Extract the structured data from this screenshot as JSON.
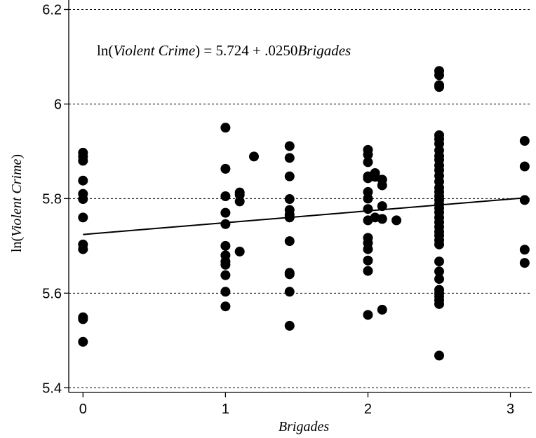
{
  "chart_data": {
    "type": "scatter",
    "title": "",
    "xlabel": "Brigades",
    "ylabel": {
      "pre": "ln(",
      "italic": "Violent Crime",
      "post": ")"
    },
    "annotation": {
      "lhs_pre": "ln(",
      "lhs_italic": "Violent Crime",
      "mid": ") = 5.724 + .0250",
      "rhs_italic": "Brigades"
    },
    "xlim": [
      -0.1,
      3.15
    ],
    "ylim": [
      5.39,
      6.22
    ],
    "xticks": [
      {
        "v": 0,
        "label": "0"
      },
      {
        "v": 1,
        "label": "1"
      },
      {
        "v": 2,
        "label": "2"
      },
      {
        "v": 3,
        "label": "3"
      }
    ],
    "yticks": [
      {
        "v": 5.4,
        "label": "5.4"
      },
      {
        "v": 5.6,
        "label": "5.6"
      },
      {
        "v": 5.8,
        "label": "5.8"
      },
      {
        "v": 6.0,
        "label": "6"
      },
      {
        "v": 6.2,
        "label": "6.2"
      }
    ],
    "grid": "horizontal-dashed",
    "fit_line": {
      "intercept": 5.724,
      "slope": 0.025,
      "x_range": [
        0,
        3.1
      ]
    },
    "points": [
      {
        "x": 0,
        "y": 5.897
      },
      {
        "x": 0,
        "y": 5.889
      },
      {
        "x": 0,
        "y": 5.88
      },
      {
        "x": 0,
        "y": 5.838
      },
      {
        "x": 0,
        "y": 5.81
      },
      {
        "x": 0,
        "y": 5.799
      },
      {
        "x": 0,
        "y": 5.76
      },
      {
        "x": 0,
        "y": 5.703
      },
      {
        "x": 0,
        "y": 5.693
      },
      {
        "x": 0,
        "y": 5.549
      },
      {
        "x": 0,
        "y": 5.545
      },
      {
        "x": 0,
        "y": 5.497
      },
      {
        "x": 1,
        "y": 5.95
      },
      {
        "x": 1,
        "y": 5.863
      },
      {
        "x": 1,
        "y": 5.805
      },
      {
        "x": 1,
        "y": 5.77
      },
      {
        "x": 1,
        "y": 5.746
      },
      {
        "x": 1,
        "y": 5.7
      },
      {
        "x": 1,
        "y": 5.68
      },
      {
        "x": 1,
        "y": 5.667
      },
      {
        "x": 1,
        "y": 5.66
      },
      {
        "x": 1,
        "y": 5.638
      },
      {
        "x": 1,
        "y": 5.603
      },
      {
        "x": 1,
        "y": 5.572
      },
      {
        "x": 1.1,
        "y": 5.813
      },
      {
        "x": 1.1,
        "y": 5.808
      },
      {
        "x": 1.1,
        "y": 5.794
      },
      {
        "x": 1.1,
        "y": 5.688
      },
      {
        "x": 1.2,
        "y": 5.889
      },
      {
        "x": 1.45,
        "y": 5.911
      },
      {
        "x": 1.45,
        "y": 5.886
      },
      {
        "x": 1.45,
        "y": 5.847
      },
      {
        "x": 1.45,
        "y": 5.799
      },
      {
        "x": 1.45,
        "y": 5.776
      },
      {
        "x": 1.45,
        "y": 5.766
      },
      {
        "x": 1.45,
        "y": 5.76
      },
      {
        "x": 1.45,
        "y": 5.71
      },
      {
        "x": 1.45,
        "y": 5.643
      },
      {
        "x": 1.45,
        "y": 5.64
      },
      {
        "x": 1.45,
        "y": 5.603
      },
      {
        "x": 1.45,
        "y": 5.531
      },
      {
        "x": 2,
        "y": 5.903
      },
      {
        "x": 2,
        "y": 5.893
      },
      {
        "x": 2,
        "y": 5.877
      },
      {
        "x": 2,
        "y": 5.847
      },
      {
        "x": 2,
        "y": 5.843
      },
      {
        "x": 2,
        "y": 5.814
      },
      {
        "x": 2,
        "y": 5.8
      },
      {
        "x": 2,
        "y": 5.778
      },
      {
        "x": 2,
        "y": 5.754
      },
      {
        "x": 2,
        "y": 5.717
      },
      {
        "x": 2,
        "y": 5.706
      },
      {
        "x": 2,
        "y": 5.693
      },
      {
        "x": 2,
        "y": 5.669
      },
      {
        "x": 2,
        "y": 5.647
      },
      {
        "x": 2,
        "y": 5.554
      },
      {
        "x": 2.05,
        "y": 5.854
      },
      {
        "x": 2.05,
        "y": 5.846
      },
      {
        "x": 2.05,
        "y": 5.76
      },
      {
        "x": 2.1,
        "y": 5.84
      },
      {
        "x": 2.1,
        "y": 5.828
      },
      {
        "x": 2.1,
        "y": 5.784
      },
      {
        "x": 2.1,
        "y": 5.757
      },
      {
        "x": 2.1,
        "y": 5.565
      },
      {
        "x": 2.2,
        "y": 5.754
      },
      {
        "x": 2.5,
        "y": 6.07
      },
      {
        "x": 2.5,
        "y": 6.061
      },
      {
        "x": 2.5,
        "y": 6.04
      },
      {
        "x": 2.5,
        "y": 6.036
      },
      {
        "x": 2.5,
        "y": 5.934
      },
      {
        "x": 2.5,
        "y": 5.926
      },
      {
        "x": 2.5,
        "y": 5.916
      },
      {
        "x": 2.5,
        "y": 5.902
      },
      {
        "x": 2.5,
        "y": 5.89
      },
      {
        "x": 2.5,
        "y": 5.882
      },
      {
        "x": 2.5,
        "y": 5.87
      },
      {
        "x": 2.5,
        "y": 5.86
      },
      {
        "x": 2.5,
        "y": 5.848
      },
      {
        "x": 2.5,
        "y": 5.836
      },
      {
        "x": 2.5,
        "y": 5.823
      },
      {
        "x": 2.5,
        "y": 5.814
      },
      {
        "x": 2.5,
        "y": 5.805
      },
      {
        "x": 2.5,
        "y": 5.797
      },
      {
        "x": 2.5,
        "y": 5.788
      },
      {
        "x": 2.5,
        "y": 5.78
      },
      {
        "x": 2.5,
        "y": 5.771
      },
      {
        "x": 2.5,
        "y": 5.76
      },
      {
        "x": 2.5,
        "y": 5.75
      },
      {
        "x": 2.5,
        "y": 5.74
      },
      {
        "x": 2.5,
        "y": 5.73
      },
      {
        "x": 2.5,
        "y": 5.722
      },
      {
        "x": 2.5,
        "y": 5.712
      },
      {
        "x": 2.5,
        "y": 5.703
      },
      {
        "x": 2.5,
        "y": 5.667
      },
      {
        "x": 2.5,
        "y": 5.646
      },
      {
        "x": 2.5,
        "y": 5.63
      },
      {
        "x": 2.5,
        "y": 5.607
      },
      {
        "x": 2.5,
        "y": 5.6
      },
      {
        "x": 2.5,
        "y": 5.593
      },
      {
        "x": 2.5,
        "y": 5.585
      },
      {
        "x": 2.5,
        "y": 5.577
      },
      {
        "x": 2.5,
        "y": 5.468
      },
      {
        "x": 3.1,
        "y": 5.922
      },
      {
        "x": 3.1,
        "y": 5.868
      },
      {
        "x": 3.1,
        "y": 5.797
      },
      {
        "x": 3.1,
        "y": 5.692
      },
      {
        "x": 3.1,
        "y": 5.664
      }
    ]
  }
}
